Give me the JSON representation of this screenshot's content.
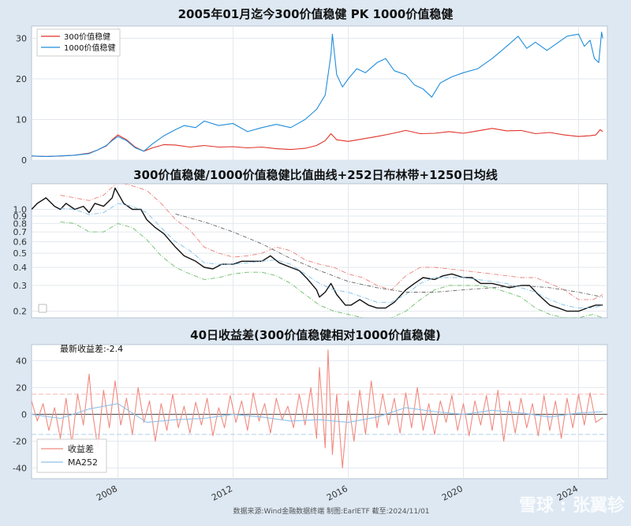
{
  "chart_data": [
    {
      "type": "line",
      "title": "2005年01月迄今300价值稳健 PK 1000价值稳健",
      "xlim": [
        2005.0,
        2025.0
      ],
      "ylim": [
        0,
        33
      ],
      "yticks": [
        0,
        10,
        20,
        30
      ],
      "legend": "top-left",
      "grid": true,
      "series": [
        {
          "name": "300价值稳健",
          "color": "#e03228",
          "x": [
            2005.0,
            2005.5,
            2006.0,
            2006.5,
            2007.0,
            2007.3,
            2007.6,
            2007.8,
            2008.0,
            2008.3,
            2008.6,
            2008.9,
            2009.2,
            2009.6,
            2010.0,
            2010.5,
            2011.0,
            2011.5,
            2012.0,
            2012.5,
            2013.0,
            2013.5,
            2014.0,
            2014.5,
            2014.9,
            2015.2,
            2015.4,
            2015.6,
            2016.0,
            2016.5,
            2017.0,
            2017.5,
            2018.0,
            2018.5,
            2019.0,
            2019.5,
            2020.0,
            2020.5,
            2021.0,
            2021.5,
            2022.0,
            2022.5,
            2023.0,
            2023.5,
            2024.0,
            2024.4,
            2024.6,
            2024.75,
            2024.84
          ],
          "y": [
            1.0,
            0.9,
            1.0,
            1.2,
            1.7,
            2.5,
            3.5,
            5.0,
            6.2,
            5.0,
            3.2,
            2.2,
            3.0,
            3.8,
            3.7,
            3.2,
            3.6,
            3.2,
            3.3,
            3.0,
            3.2,
            2.8,
            2.6,
            2.9,
            3.6,
            4.8,
            6.5,
            5.0,
            4.6,
            5.2,
            5.8,
            6.5,
            7.3,
            6.5,
            6.6,
            7.0,
            6.6,
            7.2,
            7.8,
            7.2,
            7.3,
            6.5,
            6.8,
            6.2,
            5.8,
            6.0,
            6.2,
            7.5,
            7.0
          ]
        },
        {
          "name": "1000价值稳健",
          "color": "#1f8ddb",
          "x": [
            2005.0,
            2005.5,
            2006.0,
            2006.5,
            2007.0,
            2007.3,
            2007.6,
            2007.8,
            2008.0,
            2008.3,
            2008.6,
            2008.9,
            2009.2,
            2009.6,
            2010.0,
            2010.3,
            2010.7,
            2011.0,
            2011.5,
            2012.0,
            2012.5,
            2013.0,
            2013.5,
            2014.0,
            2014.5,
            2014.9,
            2015.2,
            2015.4,
            2015.45,
            2015.6,
            2015.8,
            2016.0,
            2016.3,
            2016.6,
            2017.0,
            2017.3,
            2017.6,
            2018.0,
            2018.3,
            2018.6,
            2018.9,
            2019.2,
            2019.6,
            2020.0,
            2020.5,
            2021.0,
            2021.5,
            2021.9,
            2022.2,
            2022.5,
            2022.9,
            2023.2,
            2023.6,
            2024.0,
            2024.2,
            2024.4,
            2024.55,
            2024.7,
            2024.8,
            2024.84
          ],
          "y": [
            1.0,
            0.9,
            1.0,
            1.2,
            1.6,
            2.5,
            3.6,
            4.8,
            5.8,
            4.8,
            3.0,
            2.2,
            4.0,
            6.0,
            7.5,
            8.5,
            8.0,
            9.6,
            8.5,
            9.0,
            7.0,
            8.0,
            8.8,
            8.0,
            10.0,
            12.5,
            16.0,
            26.0,
            31.0,
            21.0,
            18.0,
            20.0,
            22.5,
            21.5,
            24.0,
            25.0,
            22.0,
            21.0,
            18.5,
            17.5,
            15.5,
            19.0,
            20.5,
            21.5,
            22.5,
            25.0,
            28.0,
            30.5,
            27.5,
            29.0,
            27.0,
            28.5,
            30.5,
            31.0,
            28.0,
            29.5,
            25.0,
            24.0,
            31.5,
            30.0
          ]
        }
      ]
    },
    {
      "type": "line",
      "title": "300价值稳健/1000价值稳健比值曲线+252日布林带+1250日均线",
      "scale": "log",
      "xlim": [
        2005.0,
        2025.0
      ],
      "ylim": [
        0.18,
        1.5
      ],
      "yticks": [
        "0.2",
        "0.3",
        "0.4",
        "0.5",
        "0.6",
        "0.7",
        "0.8",
        "0.9",
        "1.0"
      ],
      "grid": true,
      "series": [
        {
          "color": "#111111",
          "x": [
            2005.0,
            2005.2,
            2005.5,
            2005.8,
            2006.0,
            2006.2,
            2006.5,
            2006.8,
            2007.0,
            2007.2,
            2007.5,
            2007.8,
            2007.9,
            2008.2,
            2008.5,
            2008.8,
            2009.0,
            2009.3,
            2009.6,
            2010.0,
            2010.3,
            2010.7,
            2011.0,
            2011.3,
            2011.6,
            2012.0,
            2012.3,
            2012.6,
            2013.0,
            2013.3,
            2013.6,
            2014.0,
            2014.3,
            2014.6,
            2014.9,
            2015.0,
            2015.2,
            2015.4,
            2015.6,
            2015.9,
            2016.1,
            2016.4,
            2016.7,
            2017.0,
            2017.3,
            2017.6,
            2018.0,
            2018.3,
            2018.6,
            2019.0,
            2019.3,
            2019.6,
            2020.0,
            2020.3,
            2020.6,
            2021.0,
            2021.3,
            2021.6,
            2022.0,
            2022.3,
            2022.6,
            2023.0,
            2023.3,
            2023.6,
            2024.0,
            2024.3,
            2024.6,
            2024.84
          ],
          "y": [
            1.0,
            1.1,
            1.2,
            1.05,
            1.0,
            1.1,
            1.0,
            1.05,
            0.95,
            1.1,
            1.05,
            1.2,
            1.4,
            1.1,
            1.0,
            1.0,
            0.85,
            0.75,
            0.68,
            0.55,
            0.48,
            0.44,
            0.4,
            0.39,
            0.42,
            0.42,
            0.44,
            0.44,
            0.44,
            0.48,
            0.43,
            0.4,
            0.38,
            0.33,
            0.28,
            0.25,
            0.27,
            0.31,
            0.26,
            0.22,
            0.22,
            0.24,
            0.22,
            0.21,
            0.21,
            0.23,
            0.28,
            0.31,
            0.34,
            0.33,
            0.35,
            0.36,
            0.34,
            0.34,
            0.31,
            0.31,
            0.3,
            0.29,
            0.3,
            0.3,
            0.26,
            0.22,
            0.21,
            0.2,
            0.2,
            0.21,
            0.22,
            0.22
          ]
        },
        {
          "color": "#e8807a",
          "x": [
            2006.0,
            2006.5,
            2007.0,
            2007.5,
            2008.0,
            2008.5,
            2009.0,
            2009.5,
            2010.0,
            2010.5,
            2011.0,
            2011.5,
            2012.0,
            2012.5,
            2013.0,
            2013.5,
            2014.0,
            2014.5,
            2015.0,
            2015.5,
            2016.0,
            2016.5,
            2017.0,
            2017.5,
            2018.0,
            2018.5,
            2019.0,
            2019.5,
            2020.0,
            2020.5,
            2021.0,
            2021.5,
            2022.0,
            2022.5,
            2023.0,
            2023.5,
            2024.0,
            2024.5,
            2024.84
          ],
          "y": [
            1.25,
            1.2,
            1.15,
            1.25,
            1.55,
            1.45,
            1.35,
            1.1,
            0.85,
            0.72,
            0.55,
            0.5,
            0.47,
            0.48,
            0.5,
            0.55,
            0.52,
            0.45,
            0.42,
            0.4,
            0.36,
            0.34,
            0.3,
            0.28,
            0.35,
            0.4,
            0.4,
            0.39,
            0.38,
            0.37,
            0.36,
            0.35,
            0.34,
            0.34,
            0.31,
            0.28,
            0.24,
            0.24,
            0.26
          ]
        },
        {
          "color": "#6fbf6a",
          "x": [
            2006.0,
            2006.5,
            2007.0,
            2007.5,
            2008.0,
            2008.5,
            2009.0,
            2009.5,
            2010.0,
            2010.5,
            2011.0,
            2011.5,
            2012.0,
            2012.5,
            2013.0,
            2013.5,
            2014.0,
            2014.5,
            2015.0,
            2015.5,
            2016.0,
            2016.5,
            2017.0,
            2017.5,
            2018.0,
            2018.5,
            2019.0,
            2019.5,
            2020.0,
            2020.5,
            2021.0,
            2021.5,
            2022.0,
            2022.5,
            2023.0,
            2023.5,
            2024.0,
            2024.5,
            2024.84
          ],
          "y": [
            0.82,
            0.8,
            0.7,
            0.7,
            0.8,
            0.75,
            0.62,
            0.48,
            0.4,
            0.36,
            0.33,
            0.34,
            0.36,
            0.37,
            0.37,
            0.35,
            0.31,
            0.26,
            0.22,
            0.2,
            0.19,
            0.18,
            0.17,
            0.18,
            0.2,
            0.24,
            0.28,
            0.3,
            0.3,
            0.3,
            0.29,
            0.27,
            0.25,
            0.21,
            0.19,
            0.18,
            0.18,
            0.19,
            0.18
          ]
        },
        {
          "color": "#7fbfe8",
          "x": [
            2006.0,
            2006.5,
            2007.0,
            2007.5,
            2008.0,
            2008.5,
            2009.0,
            2009.5,
            2010.0,
            2010.5,
            2011.0,
            2011.5,
            2012.0,
            2012.5,
            2013.0,
            2013.5,
            2014.0,
            2014.5,
            2015.0,
            2015.5,
            2016.0,
            2016.5,
            2017.0,
            2017.5,
            2018.0,
            2018.5,
            2019.0,
            2019.5,
            2020.0,
            2020.5,
            2021.0,
            2021.5,
            2022.0,
            2022.5,
            2023.0,
            2023.5,
            2024.0,
            2024.5,
            2024.84
          ],
          "y": [
            1.02,
            1.0,
            0.92,
            0.95,
            1.1,
            1.05,
            0.95,
            0.75,
            0.6,
            0.52,
            0.43,
            0.42,
            0.42,
            0.43,
            0.44,
            0.45,
            0.42,
            0.36,
            0.31,
            0.28,
            0.27,
            0.25,
            0.23,
            0.23,
            0.26,
            0.31,
            0.34,
            0.34,
            0.34,
            0.33,
            0.32,
            0.31,
            0.29,
            0.27,
            0.24,
            0.22,
            0.21,
            0.21,
            0.22
          ]
        },
        {
          "color": "#666666",
          "x": [
            2010.0,
            2011.0,
            2012.0,
            2013.0,
            2014.0,
            2015.0,
            2016.0,
            2017.0,
            2018.0,
            2019.0,
            2020.0,
            2021.0,
            2022.0,
            2023.0,
            2024.0,
            2024.84
          ],
          "y": [
            0.93,
            0.82,
            0.7,
            0.58,
            0.46,
            0.38,
            0.32,
            0.29,
            0.27,
            0.27,
            0.28,
            0.29,
            0.3,
            0.29,
            0.27,
            0.25
          ]
        }
      ]
    },
    {
      "type": "line",
      "title": "40日收益差(300价值稳健相对1000价值稳健)",
      "annotation": "最新收益差:-2.4",
      "xlim": [
        2005.0,
        2025.0
      ],
      "ylim": [
        -48,
        52
      ],
      "yticks": [
        -40,
        -20,
        0,
        20,
        40
      ],
      "xticks": [
        "2008",
        "2012",
        "2016",
        "2020",
        "2024"
      ],
      "xtick_values": [
        2008,
        2012,
        2016,
        2020,
        2024
      ],
      "hlines": [
        15,
        -15,
        0
      ],
      "legend": "bottom-left",
      "grid": true,
      "series": [
        {
          "name": "收益差",
          "color": "#f08a80",
          "x": [
            2005.0,
            2005.2,
            2005.4,
            2005.6,
            2005.8,
            2006.0,
            2006.2,
            2006.4,
            2006.6,
            2006.8,
            2007.0,
            2007.1,
            2007.3,
            2007.5,
            2007.7,
            2007.9,
            2008.1,
            2008.3,
            2008.5,
            2008.7,
            2008.9,
            2009.1,
            2009.3,
            2009.5,
            2009.7,
            2009.9,
            2010.1,
            2010.3,
            2010.5,
            2010.7,
            2010.9,
            2011.1,
            2011.3,
            2011.5,
            2011.7,
            2011.9,
            2012.1,
            2012.3,
            2012.5,
            2012.7,
            2012.9,
            2013.1,
            2013.3,
            2013.5,
            2013.7,
            2013.9,
            2014.1,
            2014.3,
            2014.5,
            2014.7,
            2014.9,
            2015.0,
            2015.2,
            2015.3,
            2015.45,
            2015.6,
            2015.8,
            2016.0,
            2016.2,
            2016.4,
            2016.6,
            2016.8,
            2017.0,
            2017.2,
            2017.4,
            2017.6,
            2017.8,
            2018.0,
            2018.2,
            2018.4,
            2018.6,
            2018.8,
            2019.0,
            2019.2,
            2019.4,
            2019.6,
            2019.8,
            2020.0,
            2020.2,
            2020.4,
            2020.6,
            2020.8,
            2021.0,
            2021.2,
            2021.4,
            2021.6,
            2021.8,
            2022.0,
            2022.2,
            2022.4,
            2022.6,
            2022.8,
            2023.0,
            2023.2,
            2023.4,
            2023.6,
            2023.8,
            2024.0,
            2024.2,
            2024.4,
            2024.6,
            2024.84
          ],
          "y": [
            10,
            -5,
            8,
            -12,
            5,
            -18,
            12,
            -22,
            15,
            -8,
            30,
            5,
            -25,
            18,
            -10,
            25,
            -8,
            12,
            -15,
            20,
            -6,
            10,
            -20,
            8,
            -12,
            15,
            -10,
            6,
            -14,
            9,
            -8,
            12,
            -16,
            5,
            -10,
            14,
            -6,
            10,
            -12,
            16,
            -5,
            8,
            -14,
            12,
            -4,
            6,
            -10,
            15,
            -8,
            20,
            -18,
            35,
            -25,
            48,
            -30,
            15,
            -40,
            10,
            -20,
            18,
            -15,
            25,
            -10,
            15,
            -8,
            12,
            -14,
            16,
            -10,
            20,
            -12,
            8,
            -15,
            10,
            -6,
            14,
            -12,
            8,
            -16,
            10,
            -8,
            14,
            -12,
            18,
            -20,
            10,
            -14,
            12,
            -10,
            8,
            -16,
            14,
            -12,
            10,
            -18,
            12,
            -10,
            15,
            -8,
            16,
            -6,
            -2.4
          ]
        },
        {
          "name": "MA252",
          "color": "#8ec1ea",
          "x": [
            2005.0,
            2006.0,
            2007.0,
            2008.0,
            2009.0,
            2010.0,
            2011.0,
            2012.0,
            2013.0,
            2014.0,
            2015.0,
            2016.0,
            2017.0,
            2018.0,
            2019.0,
            2020.0,
            2021.0,
            2022.0,
            2023.0,
            2024.0,
            2024.84
          ],
          "y": [
            0,
            -3,
            4,
            8,
            -6,
            -4,
            -3,
            0,
            -2,
            -5,
            -4,
            -6,
            -2,
            5,
            2,
            0,
            3,
            1,
            -2,
            1,
            2
          ]
        }
      ]
    }
  ],
  "source": "数据来源:Wind金融数据终端  制图:EarlETF 截至:2024/11/01",
  "watermark": "雪球 : 张翼轸"
}
